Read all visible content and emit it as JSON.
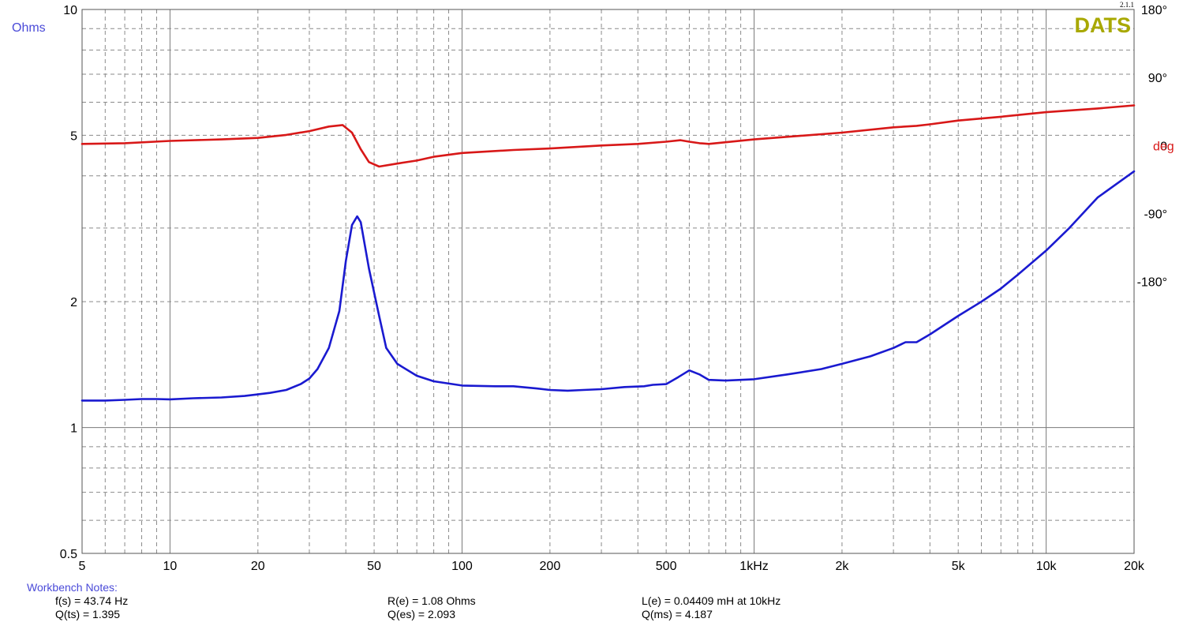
{
  "chart_data": {
    "type": "line",
    "title": "",
    "xlabel": "",
    "x_scale": "log",
    "xlim": [
      5,
      20000
    ],
    "x_ticks": [
      {
        "value": 5,
        "label": "5"
      },
      {
        "value": 10,
        "label": "10"
      },
      {
        "value": 20,
        "label": "20"
      },
      {
        "value": 50,
        "label": "50"
      },
      {
        "value": 100,
        "label": "100"
      },
      {
        "value": 200,
        "label": "200"
      },
      {
        "value": 500,
        "label": "500"
      },
      {
        "value": 1000,
        "label": "1kHz"
      },
      {
        "value": 2000,
        "label": "2k"
      },
      {
        "value": 5000,
        "label": "5k"
      },
      {
        "value": 10000,
        "label": "10k"
      },
      {
        "value": 20000,
        "label": "20k"
      }
    ],
    "y_left": {
      "label": "Ohms",
      "scale": "log",
      "lim": [
        0.5,
        10
      ],
      "ticks": [
        {
          "value": 10,
          "label": "10"
        },
        {
          "value": 5,
          "label": "5"
        },
        {
          "value": 2,
          "label": "2"
        },
        {
          "value": 1,
          "label": "1"
        },
        {
          "value": 0.5,
          "label": "0.5"
        }
      ]
    },
    "y_right": {
      "label": "deg",
      "scale": "linear",
      "lim": [
        -540,
        180
      ],
      "ticks": [
        {
          "value": 180,
          "label": "180°"
        },
        {
          "value": 90,
          "label": "90°"
        },
        {
          "value": 0,
          "label": "0"
        },
        {
          "value": -90,
          "label": "-90°"
        },
        {
          "value": -180,
          "label": "-180°"
        }
      ]
    },
    "grid": true,
    "series": [
      {
        "axis": "left",
        "color": "#1a1ad0",
        "points": [
          [
            5,
            1.16
          ],
          [
            6,
            1.16
          ],
          [
            7,
            1.165
          ],
          [
            8,
            1.17
          ],
          [
            9,
            1.17
          ],
          [
            10,
            1.168
          ],
          [
            12,
            1.175
          ],
          [
            15,
            1.18
          ],
          [
            18,
            1.19
          ],
          [
            20,
            1.2
          ],
          [
            22,
            1.21
          ],
          [
            25,
            1.23
          ],
          [
            28,
            1.27
          ],
          [
            30,
            1.31
          ],
          [
            32,
            1.38
          ],
          [
            35,
            1.55
          ],
          [
            38,
            1.9
          ],
          [
            40,
            2.5
          ],
          [
            42,
            3.05
          ],
          [
            43.74,
            3.2
          ],
          [
            45,
            3.1
          ],
          [
            48,
            2.4
          ],
          [
            52,
            1.85
          ],
          [
            55,
            1.55
          ],
          [
            60,
            1.42
          ],
          [
            70,
            1.33
          ],
          [
            80,
            1.29
          ],
          [
            100,
            1.26
          ],
          [
            130,
            1.255
          ],
          [
            150,
            1.255
          ],
          [
            180,
            1.24
          ],
          [
            200,
            1.23
          ],
          [
            230,
            1.225
          ],
          [
            260,
            1.23
          ],
          [
            300,
            1.235
          ],
          [
            360,
            1.25
          ],
          [
            420,
            1.255
          ],
          [
            450,
            1.265
          ],
          [
            500,
            1.27
          ],
          [
            550,
            1.32
          ],
          [
            600,
            1.37
          ],
          [
            650,
            1.34
          ],
          [
            700,
            1.3
          ],
          [
            800,
            1.295
          ],
          [
            1000,
            1.305
          ],
          [
            1300,
            1.34
          ],
          [
            1700,
            1.38
          ],
          [
            2000,
            1.42
          ],
          [
            2500,
            1.48
          ],
          [
            3000,
            1.55
          ],
          [
            3300,
            1.6
          ],
          [
            3600,
            1.6
          ],
          [
            4000,
            1.67
          ],
          [
            5000,
            1.85
          ],
          [
            6000,
            2.0
          ],
          [
            7000,
            2.15
          ],
          [
            8000,
            2.32
          ],
          [
            10000,
            2.65
          ],
          [
            12000,
            3.0
          ],
          [
            15000,
            3.55
          ],
          [
            20000,
            4.1
          ]
        ]
      },
      {
        "axis": "right",
        "color": "#d81818",
        "points": [
          [
            5,
            2
          ],
          [
            7,
            3
          ],
          [
            10,
            6
          ],
          [
            15,
            8
          ],
          [
            20,
            10
          ],
          [
            25,
            14
          ],
          [
            30,
            19
          ],
          [
            35,
            25
          ],
          [
            39,
            27
          ],
          [
            42,
            17
          ],
          [
            45,
            -5
          ],
          [
            48,
            -22
          ],
          [
            52,
            -28
          ],
          [
            60,
            -24
          ],
          [
            70,
            -20
          ],
          [
            80,
            -15
          ],
          [
            100,
            -10
          ],
          [
            150,
            -6
          ],
          [
            200,
            -4
          ],
          [
            300,
            0
          ],
          [
            400,
            2
          ],
          [
            500,
            5
          ],
          [
            560,
            7
          ],
          [
            600,
            5
          ],
          [
            650,
            3
          ],
          [
            700,
            2
          ],
          [
            1000,
            8
          ],
          [
            2000,
            17
          ],
          [
            3000,
            24
          ],
          [
            3600,
            26
          ],
          [
            4000,
            28
          ],
          [
            5000,
            33
          ],
          [
            7000,
            38
          ],
          [
            10000,
            44
          ],
          [
            15000,
            49
          ],
          [
            20000,
            53
          ]
        ]
      }
    ],
    "annotations": [
      {
        "text": "DATS",
        "color": "#a8a800"
      },
      {
        "text": "2.1.1",
        "color": "#000000"
      }
    ]
  },
  "notes": {
    "title": "Workbench Notes:",
    "col1": [
      "f(s) = 43.74 Hz",
      "Q(ts) = 1.395"
    ],
    "col2": [
      "R(e) = 1.08 Ohms",
      "Q(es) = 2.093"
    ],
    "col3": [
      "L(e) = 0.04409 mH at 10kHz",
      "Q(ms) = 4.187"
    ]
  },
  "colors": {
    "impedance": "#1a1ad0",
    "phase": "#d81818",
    "ohms_label": "#4a4ad8",
    "deg_label": "#d81818",
    "brand": "#a8a800",
    "grid_major": "#7a7a7a",
    "grid_minor": "#8a8a8a"
  }
}
